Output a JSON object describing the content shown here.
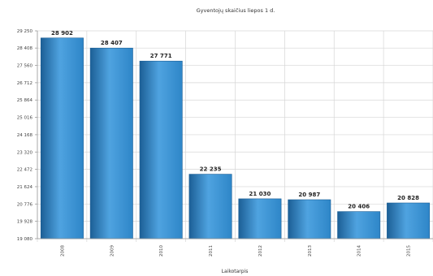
{
  "chart_data": {
    "type": "bar",
    "title": "Gyventojų skaičius liepos 1 d.",
    "xlabel": "Laikotarpis",
    "ylabel": "",
    "categories": [
      "2008",
      "2009",
      "2010",
      "2011",
      "2012",
      "2013",
      "2014",
      "2015"
    ],
    "values": [
      28902,
      28407,
      27771,
      22235,
      21030,
      20987,
      20406,
      20828
    ],
    "value_labels": [
      "28 902",
      "28 407",
      "27 771",
      "22 235",
      "21 030",
      "20 987",
      "20 406",
      "20 828"
    ],
    "ylim": [
      19080,
      29250
    ],
    "y_ticks": [
      19080,
      19928,
      20776,
      21624,
      22472,
      23320,
      24168,
      25016,
      25864,
      26712,
      27560,
      28408,
      29250
    ],
    "y_tick_labels": [
      "19 080",
      "19 928",
      "20 776",
      "21 624",
      "22 472",
      "23 320",
      "24 168",
      "25 016",
      "25 864",
      "26 712",
      "27 560",
      "28 408",
      "29 250"
    ],
    "grid": true,
    "bar_color": "#2e86c8",
    "bar_color_dark": "#1c5f96",
    "bar_color_light": "#4fa3e0"
  }
}
